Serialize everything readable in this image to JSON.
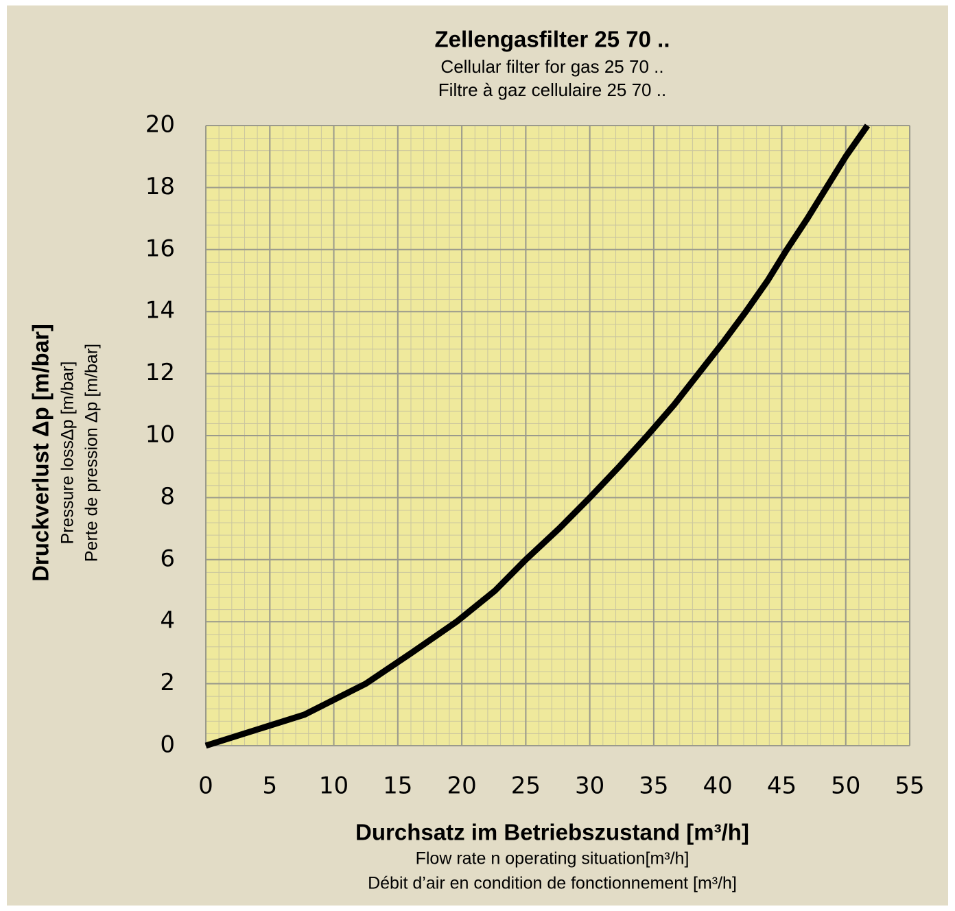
{
  "chart_data": {
    "type": "line",
    "title": "Zellengasfilter 25 70 ..",
    "subtitle": [
      "Cellular filter for gas 25 70 ..",
      "Filtre à gaz cellulaire 25 70 .."
    ],
    "x_label": [
      "Durchsatz im Betriebszustand [m³/h]",
      "Flow rate n operating situation[m³/h]",
      "Débit d’air en condition de fonctionnement [m³/h]"
    ],
    "y_label": [
      "Druckverlust Δp [m/bar]",
      "Pressure lossΔp [m/bar]",
      "Perte de pression Δp [m/bar]"
    ],
    "x": [
      0,
      7.7,
      12.5,
      16.1,
      19.6,
      22.6,
      25,
      27.6,
      30,
      32.3,
      34.5,
      36.6,
      38.5,
      40.4,
      42.2,
      43.9,
      45.4,
      47,
      48.5,
      50,
      51.7
    ],
    "series": [
      {
        "name": "Zellengasfilter 25 70",
        "color": "#000000",
        "values": [
          0,
          1,
          2,
          3,
          4,
          5,
          6,
          7,
          8,
          9,
          10,
          11,
          12,
          13,
          14,
          15,
          16,
          17,
          18,
          19,
          20
        ]
      }
    ],
    "xlim": [
      0,
      55
    ],
    "xticks": [
      0,
      5,
      10,
      15,
      20,
      25,
      30,
      35,
      40,
      45,
      50,
      55
    ],
    "ylim": [
      0,
      20
    ],
    "yticks": [
      0,
      2,
      4,
      6,
      8,
      10,
      12,
      14,
      16,
      18,
      20
    ],
    "grid": true
  }
}
